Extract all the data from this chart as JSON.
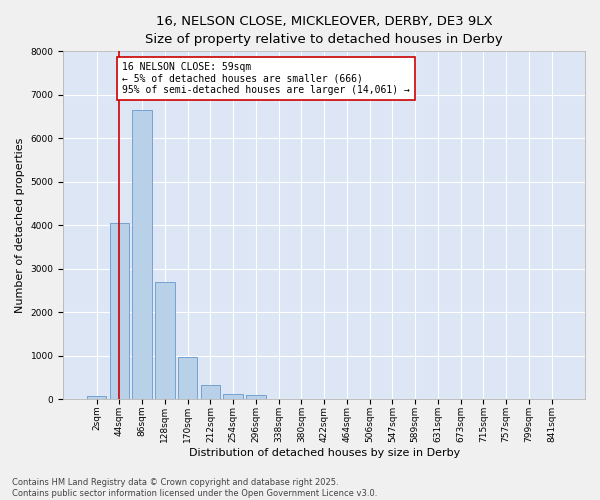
{
  "title1": "16, NELSON CLOSE, MICKLEOVER, DERBY, DE3 9LX",
  "title2": "Size of property relative to detached houses in Derby",
  "xlabel": "Distribution of detached houses by size in Derby",
  "ylabel": "Number of detached properties",
  "categories": [
    "2sqm",
    "44sqm",
    "86sqm",
    "128sqm",
    "170sqm",
    "212sqm",
    "254sqm",
    "296sqm",
    "338sqm",
    "380sqm",
    "422sqm",
    "464sqm",
    "506sqm",
    "547sqm",
    "589sqm",
    "631sqm",
    "673sqm",
    "715sqm",
    "757sqm",
    "799sqm",
    "841sqm"
  ],
  "values": [
    70,
    4050,
    6650,
    2700,
    980,
    320,
    130,
    100,
    0,
    0,
    0,
    0,
    0,
    0,
    0,
    0,
    0,
    0,
    0,
    0,
    0
  ],
  "bar_color": "#b8d0e8",
  "bar_edge_color": "#6699cc",
  "vline_x": 1.0,
  "vline_color": "#cc0000",
  "annotation_text": "16 NELSON CLOSE: 59sqm\n← 5% of detached houses are smaller (666)\n95% of semi-detached houses are larger (14,061) →",
  "annotation_box_color": "#ffffff",
  "annotation_box_edge": "#cc0000",
  "ylim": [
    0,
    8000
  ],
  "yticks": [
    0,
    1000,
    2000,
    3000,
    4000,
    5000,
    6000,
    7000,
    8000
  ],
  "background_color": "#dce6f5",
  "fig_background": "#f0f0f0",
  "grid_color": "#ffffff",
  "footer_line1": "Contains HM Land Registry data © Crown copyright and database right 2025.",
  "footer_line2": "Contains public sector information licensed under the Open Government Licence v3.0.",
  "title_fontsize": 9.5,
  "subtitle_fontsize": 8.5,
  "axis_label_fontsize": 8,
  "tick_fontsize": 6.5,
  "annotation_fontsize": 7,
  "footer_fontsize": 6
}
